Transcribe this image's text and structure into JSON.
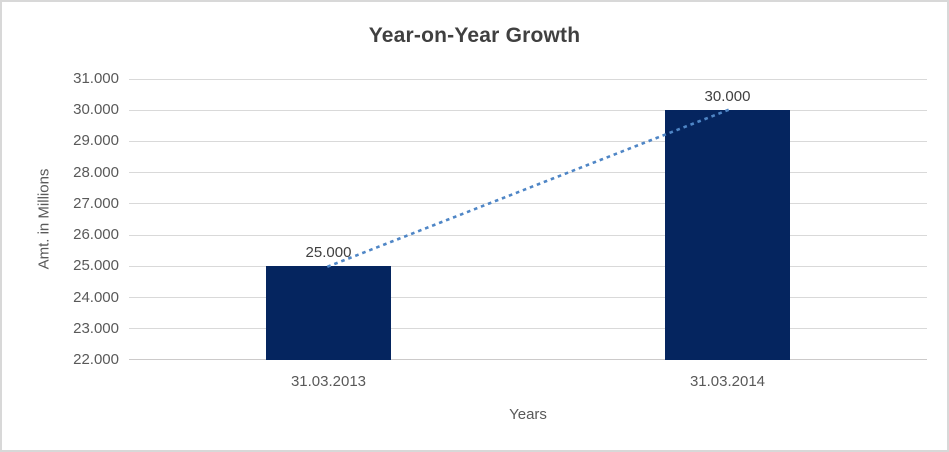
{
  "chart_data": {
    "type": "bar",
    "title": "Year-on-Year Growth",
    "xlabel": "Years",
    "ylabel": "Amt. in Millions",
    "categories": [
      "31.03.2013",
      "31.03.2014"
    ],
    "values": [
      25000,
      30000
    ],
    "data_labels": [
      "25.000",
      "30.000"
    ],
    "ylim": [
      22000,
      31000
    ],
    "y_ticks": [
      {
        "value": 22000,
        "label": "22.000"
      },
      {
        "value": 23000,
        "label": "23.000"
      },
      {
        "value": 24000,
        "label": "24.000"
      },
      {
        "value": 25000,
        "label": "25.000"
      },
      {
        "value": 26000,
        "label": "26.000"
      },
      {
        "value": 27000,
        "label": "27.000"
      },
      {
        "value": 28000,
        "label": "28.000"
      },
      {
        "value": 29000,
        "label": "29.000"
      },
      {
        "value": 30000,
        "label": "30.000"
      },
      {
        "value": 31000,
        "label": "31.000"
      }
    ],
    "grid": true,
    "legend": "none",
    "trendline": {
      "style": "dotted",
      "points": [
        {
          "category_index": 0,
          "value": 25000
        },
        {
          "category_index": 1,
          "value": 30000
        }
      ]
    },
    "colors": {
      "bar": "#05255f",
      "trendline": "#4f86c6",
      "gridline": "#d9d9d9",
      "axis_line": "#cccaca",
      "title_text": "#404040",
      "tick_text": "#595959",
      "data_label_text": "#404040",
      "chart_border": "#d8d8d8",
      "background": "#ffffff"
    }
  }
}
